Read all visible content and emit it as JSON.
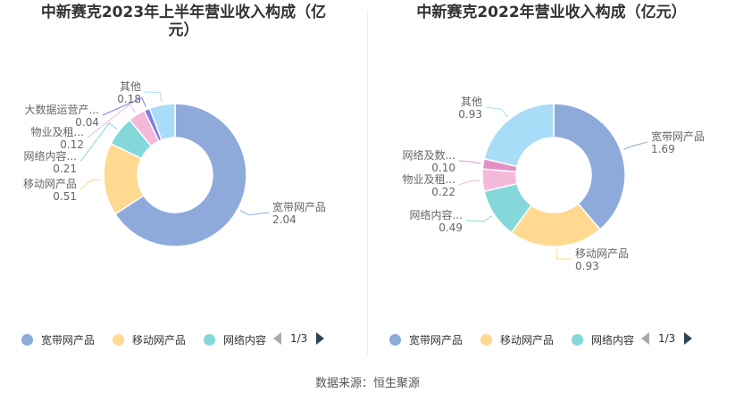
{
  "chart_data": [
    {
      "type": "pie",
      "title": "中新赛克2023年上半年营业收入构成（亿元）",
      "title_lines": [
        "中新赛克2023年上半年营业收入构成（亿",
        "元）"
      ],
      "slices": [
        {
          "name": "宽带网产品",
          "label": "宽带网产品",
          "value": 2.04,
          "value_text": "2.04",
          "color": "#8eaadb"
        },
        {
          "name": "移动网产品",
          "label": "移动网产品",
          "value": 0.51,
          "value_text": "0.51",
          "color": "#ffd98f"
        },
        {
          "name": "网络内容安全产品",
          "label": "网络内容...",
          "value": 0.21,
          "value_text": "0.21",
          "color": "#84d8d9"
        },
        {
          "name": "物业及租赁",
          "label": "物业及租...",
          "value": 0.12,
          "value_text": "0.12",
          "color": "#f4b9d9"
        },
        {
          "name": "大数据运营产品",
          "label": "大数据运营产...",
          "value": 0.04,
          "value_text": "0.04",
          "color": "#7b7be8"
        },
        {
          "name": "其他",
          "label": "其他",
          "value": 0.18,
          "value_text": "0.18",
          "color": "#a8dcf7"
        }
      ],
      "legend": {
        "items": [
          "宽带网产品",
          "移动网产品",
          "网络内容"
        ],
        "page": "1/3"
      }
    },
    {
      "type": "pie",
      "title": "中新赛克2022年营业收入构成（亿元）",
      "title_lines": [
        "中新赛克2022年营业收入构成（亿元）"
      ],
      "slices": [
        {
          "name": "宽带网产品",
          "label": "宽带网产品",
          "value": 1.69,
          "value_text": "1.69",
          "color": "#8eaadb"
        },
        {
          "name": "移动网产品",
          "label": "移动网产品",
          "value": 0.93,
          "value_text": "0.93",
          "color": "#ffd98f"
        },
        {
          "name": "网络内容安全产品",
          "label": "网络内容...",
          "value": 0.49,
          "value_text": "0.49",
          "color": "#84d8d9"
        },
        {
          "name": "物业及租赁",
          "label": "物业及租...",
          "value": 0.22,
          "value_text": "0.22",
          "color": "#f4b9d9"
        },
        {
          "name": "网络及数据产品",
          "label": "网络及数...",
          "value": 0.1,
          "value_text": "0.10",
          "color": "#e58fc9"
        },
        {
          "name": "其他",
          "label": "其他",
          "value": 0.93,
          "value_text": "0.93",
          "color": "#a8dcf7"
        }
      ],
      "legend": {
        "items": [
          "宽带网产品",
          "移动网产品",
          "网络内容"
        ],
        "page": "1/3"
      }
    }
  ],
  "source": "数据来源：恒生聚源"
}
